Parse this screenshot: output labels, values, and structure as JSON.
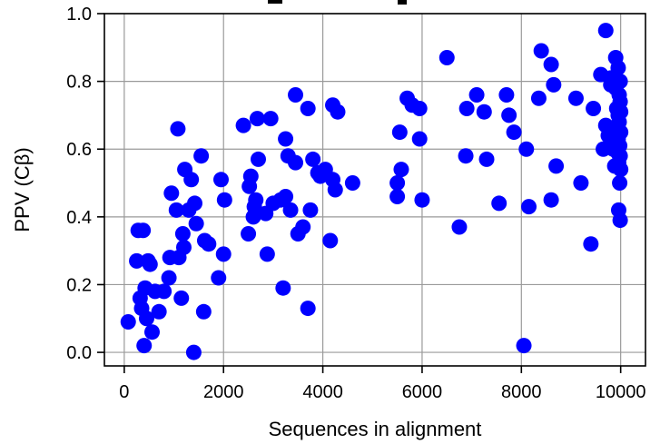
{
  "chart_data": {
    "type": "scatter",
    "title": "",
    "xlabel": "Sequences in alignment",
    "ylabel": "PPV (Cβ)",
    "xlim": [
      -400,
      10500
    ],
    "ylim": [
      -0.04,
      1.0
    ],
    "xticks": [
      0,
      2000,
      4000,
      6000,
      8000,
      10000
    ],
    "yticks": [
      0.0,
      0.2,
      0.4,
      0.6,
      0.8,
      1.0
    ],
    "xtick_labels": [
      "0",
      "2000",
      "4000",
      "6000",
      "8000",
      "10000"
    ],
    "ytick_labels": [
      "0.0",
      "0.2",
      "0.4",
      "0.6",
      "0.8",
      "1.0"
    ],
    "grid": true,
    "marker_color": "#0000ff",
    "series": [
      {
        "points": [
          [
            80,
            0.09
          ],
          [
            250,
            0.27
          ],
          [
            280,
            0.36
          ],
          [
            320,
            0.16
          ],
          [
            350,
            0.13
          ],
          [
            380,
            0.36
          ],
          [
            400,
            0.02
          ],
          [
            420,
            0.19
          ],
          [
            450,
            0.1
          ],
          [
            480,
            0.27
          ],
          [
            520,
            0.26
          ],
          [
            560,
            0.06
          ],
          [
            620,
            0.18
          ],
          [
            700,
            0.12
          ],
          [
            800,
            0.18
          ],
          [
            900,
            0.22
          ],
          [
            920,
            0.28
          ],
          [
            950,
            0.47
          ],
          [
            1050,
            0.42
          ],
          [
            1080,
            0.66
          ],
          [
            1100,
            0.28
          ],
          [
            1150,
            0.16
          ],
          [
            1180,
            0.35
          ],
          [
            1200,
            0.31
          ],
          [
            1220,
            0.54
          ],
          [
            1300,
            0.42
          ],
          [
            1350,
            0.51
          ],
          [
            1400,
            0.0
          ],
          [
            1420,
            0.44
          ],
          [
            1450,
            0.38
          ],
          [
            1550,
            0.58
          ],
          [
            1600,
            0.12
          ],
          [
            1620,
            0.33
          ],
          [
            1700,
            0.32
          ],
          [
            1900,
            0.22
          ],
          [
            1950,
            0.51
          ],
          [
            2000,
            0.29
          ],
          [
            2020,
            0.45
          ],
          [
            2400,
            0.67
          ],
          [
            2500,
            0.35
          ],
          [
            2520,
            0.49
          ],
          [
            2550,
            0.52
          ],
          [
            2600,
            0.4
          ],
          [
            2620,
            0.43
          ],
          [
            2650,
            0.45
          ],
          [
            2680,
            0.69
          ],
          [
            2700,
            0.57
          ],
          [
            2850,
            0.41
          ],
          [
            2880,
            0.29
          ],
          [
            2950,
            0.69
          ],
          [
            3000,
            0.44
          ],
          [
            3150,
            0.45
          ],
          [
            3200,
            0.19
          ],
          [
            3250,
            0.63
          ],
          [
            3250,
            0.46
          ],
          [
            3300,
            0.58
          ],
          [
            3350,
            0.42
          ],
          [
            3450,
            0.76
          ],
          [
            3450,
            0.56
          ],
          [
            3500,
            0.35
          ],
          [
            3600,
            0.37
          ],
          [
            3700,
            0.72
          ],
          [
            3700,
            0.13
          ],
          [
            3750,
            0.42
          ],
          [
            3800,
            0.57
          ],
          [
            3900,
            0.53
          ],
          [
            3950,
            0.52
          ],
          [
            4050,
            0.54
          ],
          [
            4150,
            0.33
          ],
          [
            4200,
            0.73
          ],
          [
            4200,
            0.51
          ],
          [
            4250,
            0.48
          ],
          [
            4300,
            0.71
          ],
          [
            4600,
            0.5
          ],
          [
            5500,
            0.5
          ],
          [
            5500,
            0.46
          ],
          [
            5550,
            0.65
          ],
          [
            5580,
            0.54
          ],
          [
            5700,
            0.75
          ],
          [
            5800,
            0.73
          ],
          [
            5950,
            0.72
          ],
          [
            5950,
            0.63
          ],
          [
            6000,
            0.45
          ],
          [
            6500,
            0.87
          ],
          [
            6750,
            0.37
          ],
          [
            6880,
            0.58
          ],
          [
            6900,
            0.72
          ],
          [
            7100,
            0.76
          ],
          [
            7250,
            0.71
          ],
          [
            7300,
            0.57
          ],
          [
            7550,
            0.44
          ],
          [
            7700,
            0.76
          ],
          [
            7750,
            0.7
          ],
          [
            7850,
            0.65
          ],
          [
            8050,
            0.02
          ],
          [
            8100,
            0.6
          ],
          [
            8150,
            0.43
          ],
          [
            8350,
            0.75
          ],
          [
            8400,
            0.89
          ],
          [
            8600,
            0.85
          ],
          [
            8650,
            0.79
          ],
          [
            8600,
            0.45
          ],
          [
            8700,
            0.55
          ],
          [
            9100,
            0.75
          ],
          [
            9200,
            0.5
          ],
          [
            9400,
            0.32
          ],
          [
            9450,
            0.72
          ],
          [
            9600,
            0.82
          ],
          [
            9650,
            0.6
          ],
          [
            9700,
            0.95
          ],
          [
            9700,
            0.67
          ],
          [
            9750,
            0.64
          ],
          [
            9800,
            0.81
          ],
          [
            9800,
            0.79
          ],
          [
            9820,
            0.63
          ],
          [
            9850,
            0.6
          ],
          [
            9870,
            0.62
          ],
          [
            9880,
            0.55
          ],
          [
            9900,
            0.87
          ],
          [
            9900,
            0.78
          ],
          [
            9920,
            0.72
          ],
          [
            9930,
            0.66
          ],
          [
            9940,
            0.59
          ],
          [
            9950,
            0.84
          ],
          [
            9950,
            0.7
          ],
          [
            9950,
            0.63
          ],
          [
            9960,
            0.56
          ],
          [
            9960,
            0.42
          ],
          [
            9970,
            0.76
          ],
          [
            9970,
            0.68
          ],
          [
            9980,
            0.61
          ],
          [
            9980,
            0.5
          ],
          [
            9990,
            0.8
          ],
          [
            9990,
            0.74
          ],
          [
            9990,
            0.58
          ],
          [
            9990,
            0.39
          ],
          [
            10000,
            0.71
          ],
          [
            10000,
            0.65
          ],
          [
            10000,
            0.54
          ]
        ]
      }
    ]
  }
}
